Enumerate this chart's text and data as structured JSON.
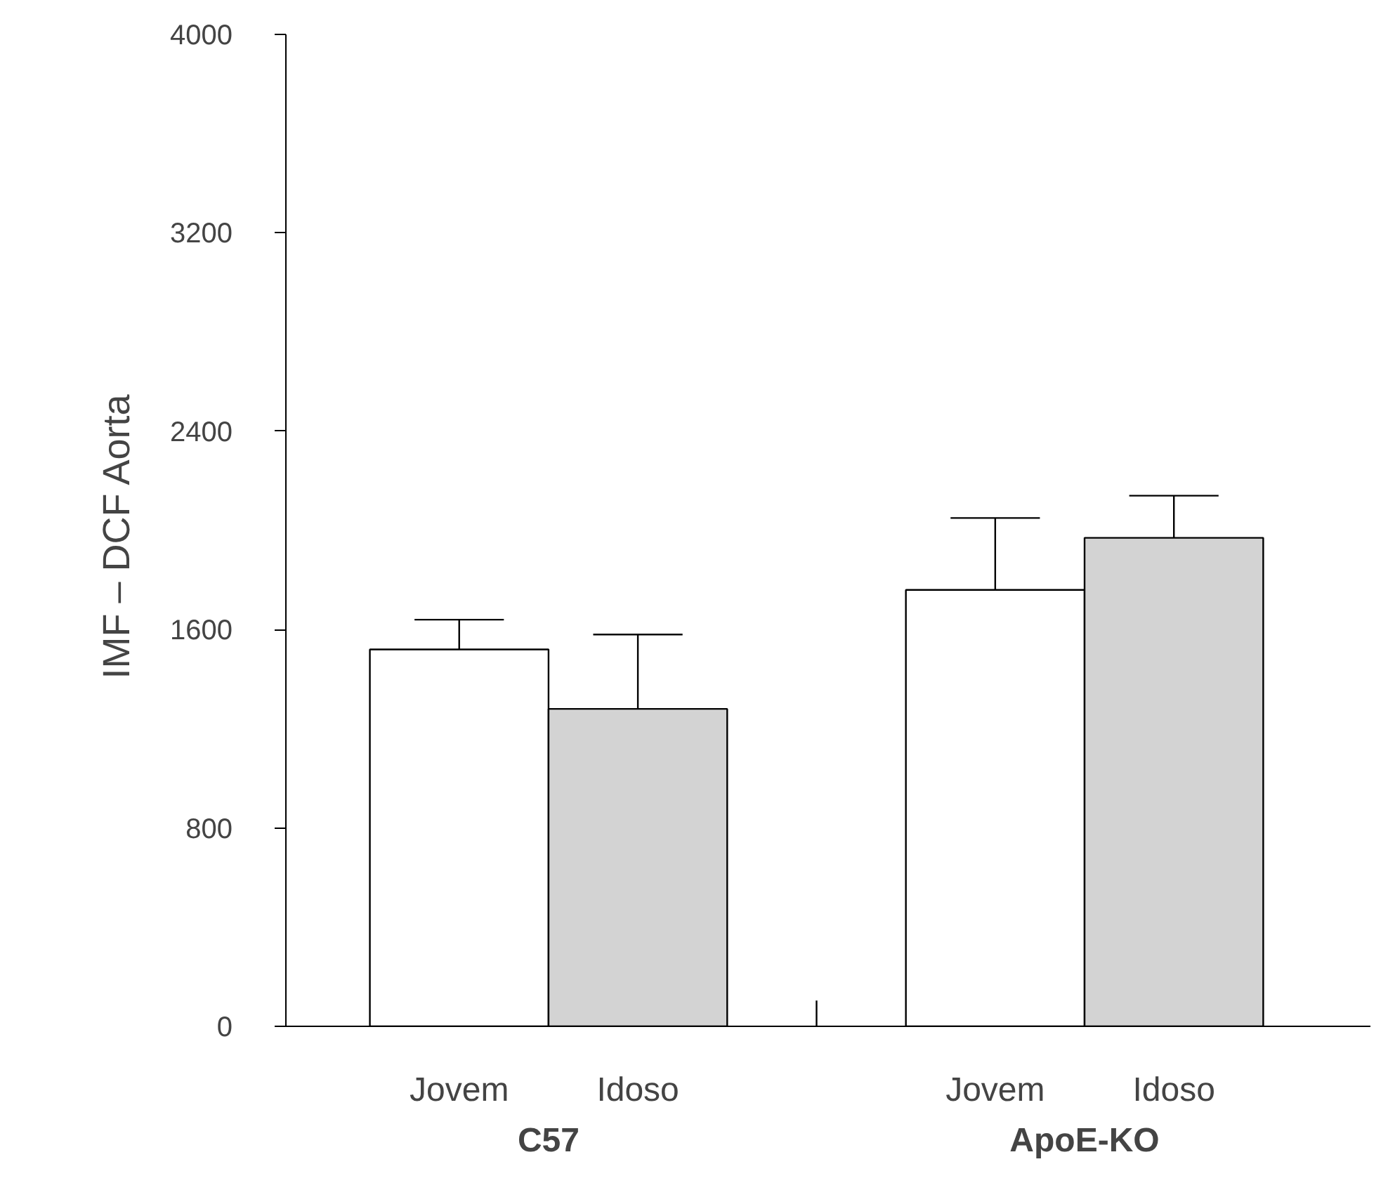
{
  "chart_data": {
    "type": "bar",
    "ylabel": "IMF – DCF  Aorta",
    "categories": [
      "Jovem",
      "Idoso",
      "Jovem",
      "Idoso"
    ],
    "values": [
      1520,
      1280,
      1760,
      1970
    ],
    "colors": [
      "#ffffff",
      "#d3d3d3",
      "#ffffff",
      "#d3d3d3"
    ],
    "errors": [
      120,
      300,
      290,
      170
    ],
    "annotations": [
      "C57",
      "ApoE-KO"
    ],
    "ylim": [
      0,
      4000
    ],
    "yticks": [
      0,
      800,
      1600,
      2400,
      3200,
      4000
    ],
    "grid": false
  }
}
